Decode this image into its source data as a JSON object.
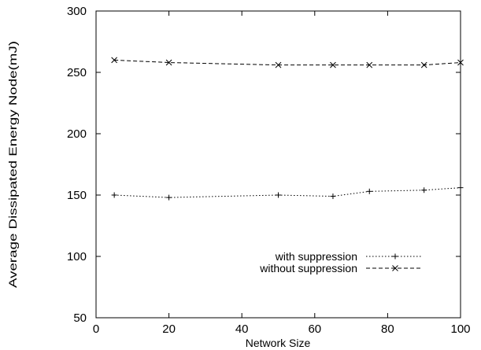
{
  "chart_data": {
    "type": "line",
    "title": "",
    "xlabel": "Network Size",
    "ylabel": "Average Dissipated Energy Node(mJ)",
    "xlim": [
      0,
      100
    ],
    "ylim": [
      50,
      300
    ],
    "xticks": [
      0,
      20,
      40,
      60,
      80,
      100
    ],
    "yticks": [
      50,
      100,
      150,
      200,
      250,
      300
    ],
    "grid": false,
    "legend_position": "bottom-right",
    "series": [
      {
        "name": "with suppression",
        "marker": "plus",
        "line_style": "dotted",
        "x": [
          5,
          20,
          50,
          65,
          75,
          90,
          100
        ],
        "y": [
          150,
          148,
          150,
          149,
          153,
          154,
          156
        ]
      },
      {
        "name": "without suppression",
        "marker": "x",
        "line_style": "dashed",
        "x": [
          5,
          20,
          50,
          65,
          75,
          90,
          100
        ],
        "y": [
          260,
          258,
          256,
          256,
          256,
          256,
          258
        ]
      }
    ]
  }
}
